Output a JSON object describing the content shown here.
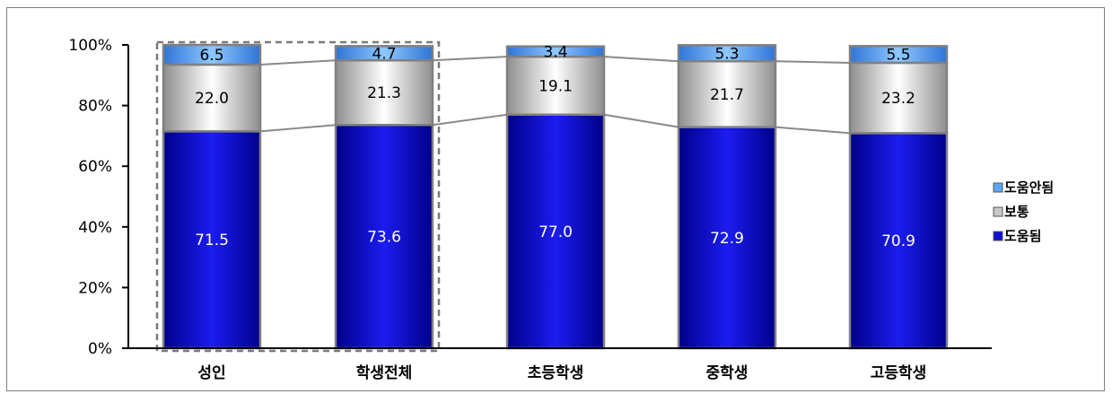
{
  "chart_data": {
    "type": "bar",
    "stacked": true,
    "percent_stacked": true,
    "categories": [
      "성인",
      "학생전체",
      "초등학생",
      "중학생",
      "고등학생"
    ],
    "series": [
      {
        "name": "도움됨",
        "values": [
          71.5,
          73.6,
          77.0,
          72.9,
          70.9
        ],
        "labels": [
          "71.5",
          "73.6",
          "77.0",
          "72.9",
          "70.9"
        ],
        "color": "#1010d8"
      },
      {
        "name": "보통",
        "values": [
          22.0,
          21.3,
          19.1,
          21.7,
          23.2
        ],
        "labels": [
          "22.0",
          "21.3",
          "19.1",
          "21.7",
          "23.2"
        ],
        "color": "#d4d4d4"
      },
      {
        "name": "도움안됨",
        "values": [
          6.5,
          4.7,
          3.4,
          5.3,
          5.5
        ],
        "labels": [
          "6.5",
          "4.7",
          "3.4",
          "5.3",
          "5.5"
        ],
        "color": "#5ca7f2"
      }
    ],
    "yticks": [
      "0%",
      "20%",
      "40%",
      "60%",
      "80%",
      "100%"
    ],
    "ylim": [
      0,
      100
    ],
    "legend": {
      "placement": "right",
      "order": [
        "도움안됨",
        "보통",
        "도움됨"
      ]
    },
    "grid": false,
    "highlight_box": [
      "성인",
      "학생전체"
    ],
    "series_lines": true
  }
}
